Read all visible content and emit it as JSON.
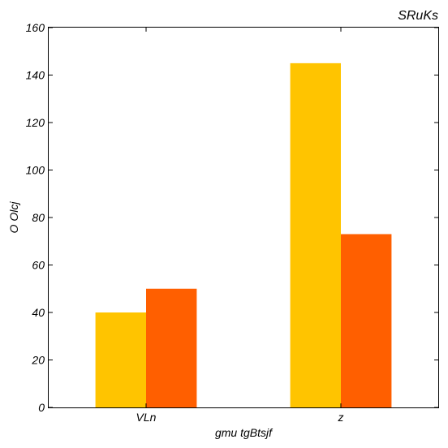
{
  "chart_data": {
    "type": "bar",
    "title": "SRuKs",
    "xlabel": "gmu tgBtsjf",
    "ylabel": "O Olcj",
    "categories": [
      "VLn",
      "z"
    ],
    "series": [
      {
        "values": [
          40,
          145
        ],
        "color": "#FFC400"
      },
      {
        "values": [
          50,
          73
        ],
        "color": "#FF5F00"
      }
    ],
    "ylim": [
      0,
      160
    ],
    "yticks": [
      "0",
      "20",
      "40",
      "60",
      "80",
      "100",
      "120",
      "140",
      "160"
    ],
    "grid": false,
    "legend": "none"
  }
}
